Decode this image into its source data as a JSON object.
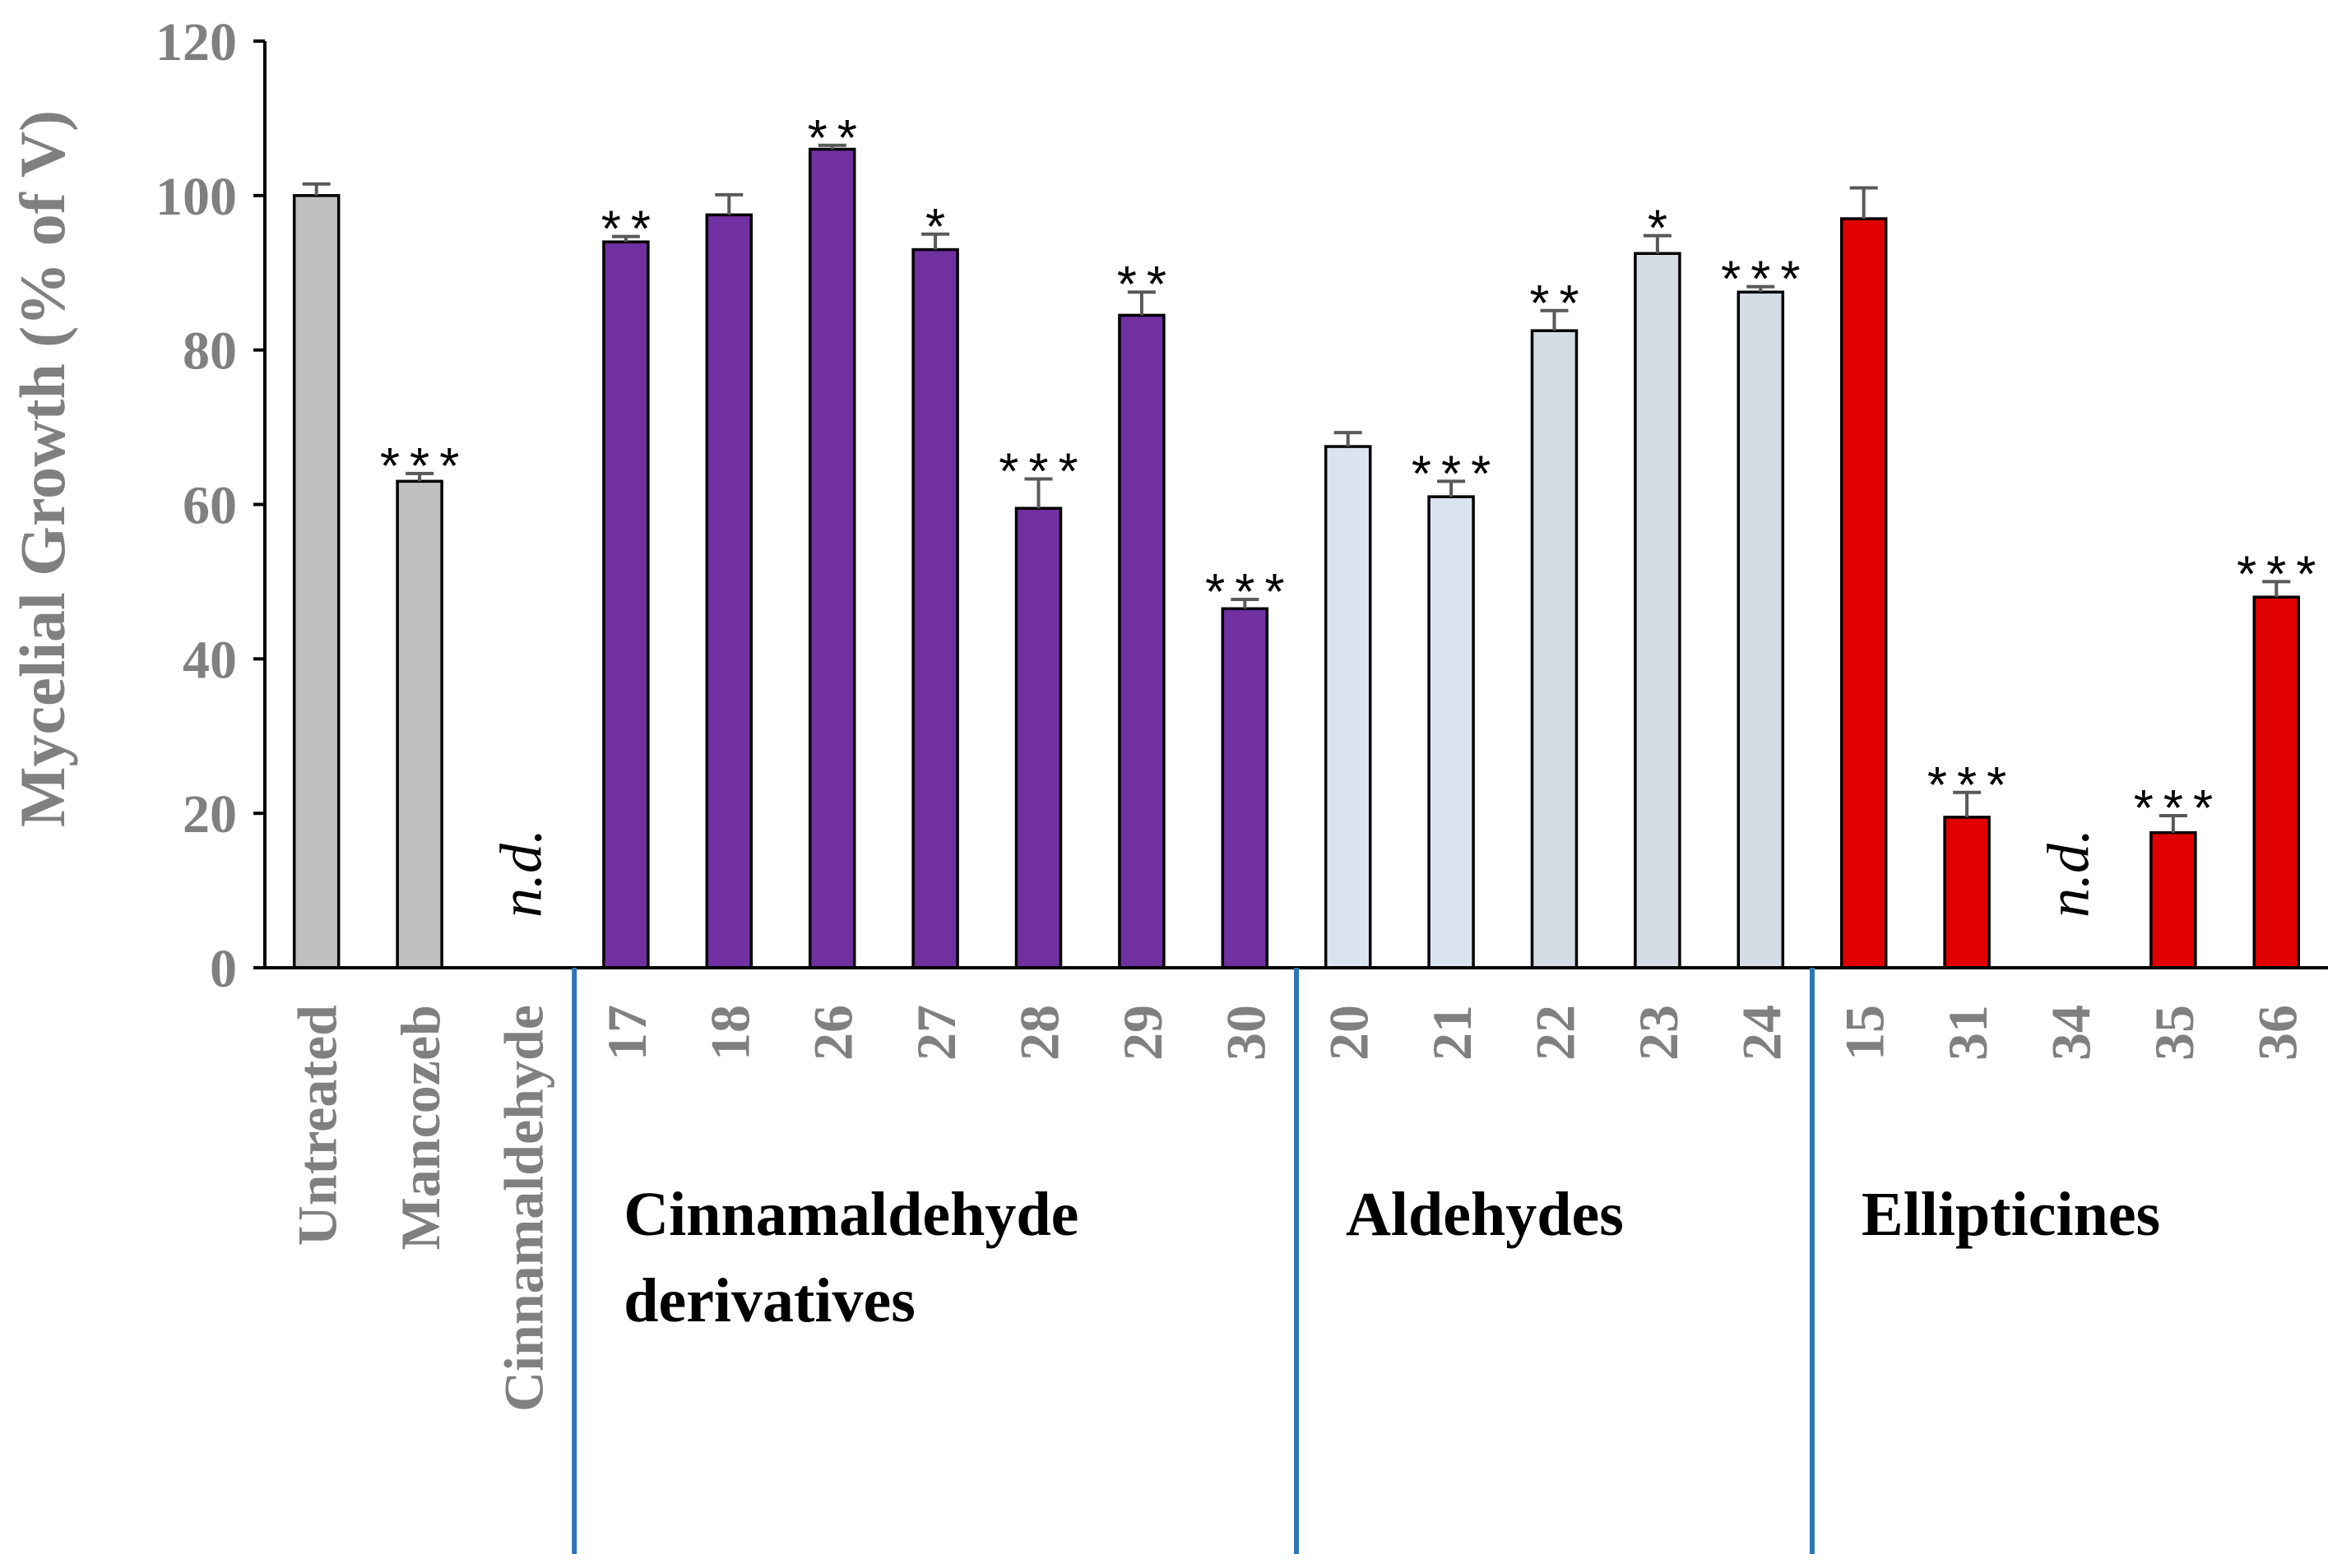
{
  "chart_data": {
    "type": "bar",
    "title": "",
    "xlabel": "",
    "ylabel": "Mycelial Growth (% of V)",
    "ylim": [
      0,
      120
    ],
    "yticks": [
      "0",
      "20",
      "40",
      "60",
      "80",
      "100",
      "120"
    ],
    "nd_label": "n.d.",
    "categories": [
      "Untreated",
      "Mancozeb",
      "Cinnamaldehyde",
      "17",
      "18",
      "26",
      "27",
      "28",
      "29",
      "30",
      "20",
      "21",
      "22",
      "23",
      "24",
      "15",
      "31",
      "34",
      "35",
      "36"
    ],
    "values": [
      100,
      63,
      null,
      94,
      97.5,
      106,
      93,
      59.5,
      84.5,
      46.5,
      67.5,
      61,
      82.5,
      92.5,
      87.5,
      97,
      19.5,
      null,
      17.5,
      48
    ],
    "errors": [
      1.5,
      1,
      null,
      0.7,
      2.6,
      0.5,
      2,
      3.8,
      3,
      1.2,
      1.8,
      2,
      2.6,
      2.3,
      0.7,
      4,
      3.2,
      null,
      2.2,
      2
    ],
    "significance": [
      "",
      "***",
      "",
      "**",
      "",
      "**",
      "*",
      "***",
      "**",
      "***",
      "",
      "***",
      "**",
      "*",
      "***",
      "",
      "***",
      "",
      "***",
      "***"
    ],
    "bar_colors": [
      "#bfbfbf",
      "#bfbfbf",
      "#bfbfbf",
      "#7030a0",
      "#7030a0",
      "#7030a0",
      "#7030a0",
      "#7030a0",
      "#7030a0",
      "#7030a0",
      "#dae3f0",
      "#dae3f0",
      "#d6dce5",
      "#d6dce5",
      "#d6dce5",
      "#e00000",
      "#e00000",
      "#e00000",
      "#e00000",
      "#e00000"
    ],
    "groups": [
      {
        "lines": [
          "Cinnamaldehyde",
          "derivatives"
        ],
        "start": 3,
        "end": 9
      },
      {
        "lines": [
          "Aldehydes"
        ],
        "start": 10,
        "end": 14
      },
      {
        "lines": [
          "Ellipticines"
        ],
        "start": 15,
        "end": 19
      }
    ],
    "separator_color": "#2e75b6",
    "axis_text_color": "#808080"
  }
}
